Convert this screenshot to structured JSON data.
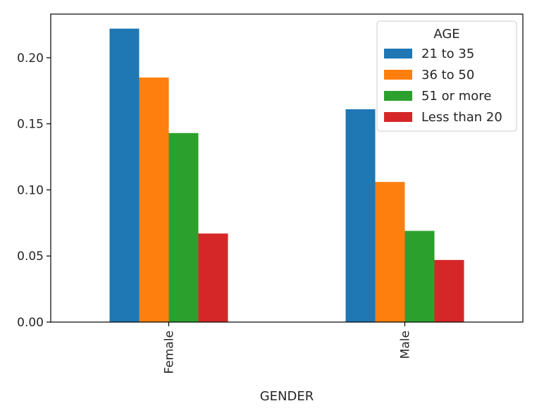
{
  "chart_data": {
    "type": "bar",
    "categories": [
      "Female",
      "Male"
    ],
    "series": [
      {
        "name": "21 to 35",
        "values": [
          0.222,
          0.161
        ],
        "color": "#1f77b4"
      },
      {
        "name": "36 to 50",
        "values": [
          0.185,
          0.106
        ],
        "color": "#ff7f0e"
      },
      {
        "name": "51 or more",
        "values": [
          0.143,
          0.069
        ],
        "color": "#2ca02c"
      },
      {
        "name": "Less than 20",
        "values": [
          0.067,
          0.047
        ],
        "color": "#d62728"
      }
    ],
    "title": "",
    "xlabel": "GENDER",
    "ylabel": "",
    "ylim": [
      0,
      0.233
    ],
    "yticks": [
      0.0,
      0.05,
      0.1,
      0.15,
      0.2
    ],
    "ytick_labels": [
      "0.00",
      "0.05",
      "0.10",
      "0.15",
      "0.20"
    ],
    "legend": {
      "title": "AGE",
      "placement": "top-right"
    },
    "grid": false
  }
}
